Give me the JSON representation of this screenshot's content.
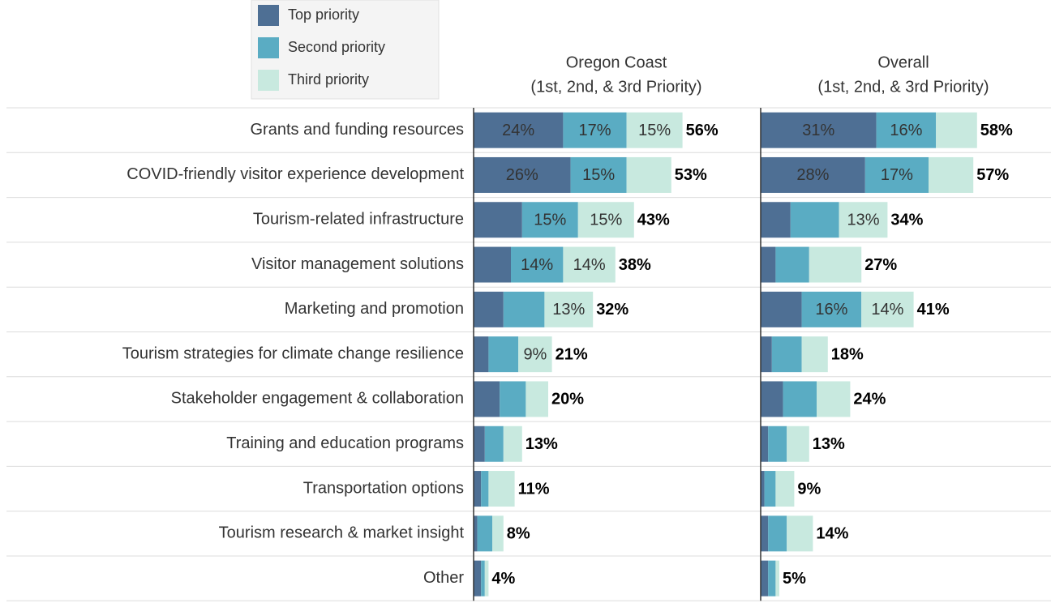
{
  "chart_data": {
    "type": "bar",
    "orientation": "horizontal",
    "stacked": true,
    "categories": [
      "Grants and funding resources",
      "COVID-friendly visitor experience development",
      "Tourism-related infrastructure",
      "Visitor management solutions",
      "Marketing and promotion",
      "Tourism strategies for climate change resilience",
      "Stakeholder engagement & collaboration",
      "Training and education programs",
      "Transportation options",
      "Tourism research & market insight",
      "Other"
    ],
    "legend": [
      {
        "name": "Top priority",
        "color": "#4e6f94"
      },
      {
        "name": "Second priority",
        "color": "#5aacc3"
      },
      {
        "name": "Third priority",
        "color": "#c8e9df"
      }
    ],
    "panels": [
      {
        "title": "Oregon Coast",
        "subtitle": "(1st, 2nd, & 3rd Priority)",
        "xlim": [
          0,
          75
        ],
        "series": [
          {
            "values": [
              24,
              26,
              13,
              10,
              8,
              4,
              7,
              3,
              2,
              1,
              2
            ],
            "value_labels": [
              "24%",
              "26%",
              null,
              null,
              null,
              null,
              null,
              null,
              null,
              null,
              null
            ]
          },
          {
            "values": [
              17,
              15,
              15,
              14,
              11,
              8,
              7,
              5,
              2,
              4,
              1
            ],
            "value_labels": [
              "17%",
              "15%",
              "15%",
              "14%",
              null,
              null,
              null,
              null,
              null,
              null,
              null
            ]
          },
          {
            "values": [
              15,
              12,
              15,
              14,
              13,
              9,
              6,
              5,
              7,
              3,
              1
            ],
            "value_labels": [
              "15%",
              null,
              "15%",
              "14%",
              "13%",
              "9%",
              null,
              null,
              null,
              null,
              null
            ]
          }
        ],
        "totals": [
          56,
          53,
          43,
          38,
          32,
          21,
          20,
          13,
          11,
          8,
          4
        ],
        "total_labels": [
          "56%",
          "53%",
          "43%",
          "38%",
          "32%",
          "21%",
          "20%",
          "13%",
          "11%",
          "8%",
          "4%"
        ]
      },
      {
        "title": "Overall",
        "subtitle": "(1st, 2nd, & 3rd Priority)",
        "xlim": [
          0,
          75
        ],
        "series": [
          {
            "values": [
              31,
              28,
              8,
              4,
              11,
              3,
              6,
              2,
              1,
              2,
              2
            ],
            "value_labels": [
              "31%",
              "28%",
              null,
              null,
              null,
              null,
              null,
              null,
              null,
              null,
              null
            ]
          },
          {
            "values": [
              16,
              17,
              13,
              9,
              16,
              8,
              9,
              5,
              3,
              5,
              2
            ],
            "value_labels": [
              "16%",
              "17%",
              null,
              null,
              "16%",
              null,
              null,
              null,
              null,
              null,
              null
            ]
          },
          {
            "values": [
              11,
              12,
              13,
              14,
              14,
              7,
              9,
              6,
              5,
              7,
              1
            ],
            "value_labels": [
              null,
              null,
              "13%",
              null,
              "14%",
              null,
              null,
              null,
              null,
              null,
              null
            ]
          }
        ],
        "totals": [
          58,
          57,
          34,
          27,
          41,
          18,
          24,
          13,
          9,
          14,
          5
        ],
        "total_labels": [
          "58%",
          "57%",
          "34%",
          "27%",
          "41%",
          "18%",
          "24%",
          "13%",
          "9%",
          "14%",
          "5%"
        ]
      }
    ]
  }
}
